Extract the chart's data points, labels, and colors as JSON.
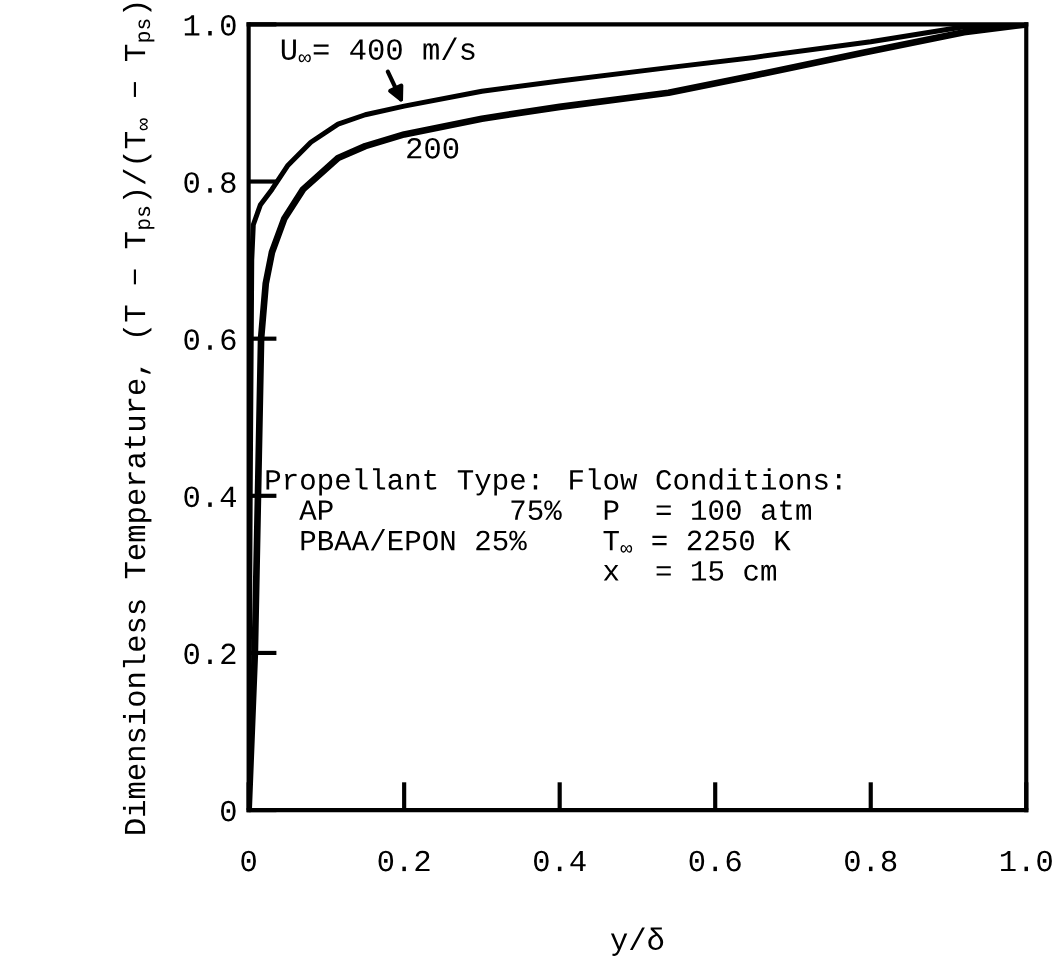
{
  "chart_data": {
    "type": "line",
    "xlabel": "y/δ",
    "ylabel": "Dimensionless Temperature, (T − T$_{ps}$)/(T$_{∞}$ − T$_{ps}$)",
    "series": [
      {
        "color": "#000000",
        "x": [
          0,
          0.002,
          0.004,
          0.006,
          0.015,
          0.03,
          0.05,
          0.08,
          0.115,
          0.15,
          0.2,
          0.3,
          0.4,
          0.54,
          0.65,
          0.8,
          0.92,
          1.0
        ],
        "values": [
          0,
          0.4,
          0.7,
          0.745,
          0.77,
          0.79,
          0.82,
          0.85,
          0.873,
          0.885,
          0.896,
          0.915,
          0.928,
          0.945,
          0.958,
          0.978,
          0.997,
          1.0
        ]
      },
      {
        "color": "#000000",
        "x": [
          0,
          0.008,
          0.013,
          0.016,
          0.022,
          0.03,
          0.046,
          0.07,
          0.115,
          0.15,
          0.2,
          0.3,
          0.4,
          0.54,
          0.65,
          0.79,
          0.92,
          1.0
        ],
        "values": [
          0,
          0.2,
          0.45,
          0.6,
          0.67,
          0.71,
          0.753,
          0.79,
          0.83,
          0.845,
          0.86,
          0.88,
          0.895,
          0.913,
          0.935,
          0.964,
          0.99,
          1.0
        ]
      }
    ],
    "annotations": [
      {
        "text": "U$_{∞}$= 400 m/s",
        "x": 0.2,
        "y": 0.896
      },
      {
        "text": "200",
        "x": 0.2,
        "y": 0.86
      },
      "Propellant Type:\n  AP          75%\n  PBAA/EPON 25%",
      "Flow Conditions:\n  P  = 100 atm\n  T$_{∞}$ = 2250 K\n  x  = 15 cm"
    ],
    "xlim": [
      0,
      1.0
    ],
    "ylim": [
      0,
      1.0
    ],
    "xticks": [
      {
        "value": 0,
        "label": "0"
      },
      {
        "value": 0.2,
        "label": "0.2"
      },
      {
        "value": 0.4,
        "label": "0.4"
      },
      {
        "value": 0.6,
        "label": "0.6"
      },
      {
        "value": 0.8,
        "label": "0.8"
      },
      {
        "value": 1.0,
        "label": "1.0"
      }
    ],
    "yticks": [
      {
        "value": 0,
        "label": "0"
      },
      {
        "value": 0.2,
        "label": "0.2"
      },
      {
        "value": 0.4,
        "label": "0.4"
      },
      {
        "value": 0.6,
        "label": "0.6"
      },
      {
        "value": 0.8,
        "label": "0.8"
      },
      {
        "value": 1.0,
        "label": "1.0"
      }
    ],
    "grid": false,
    "legend": false,
    "marker": "none",
    "line_style": "solid"
  }
}
